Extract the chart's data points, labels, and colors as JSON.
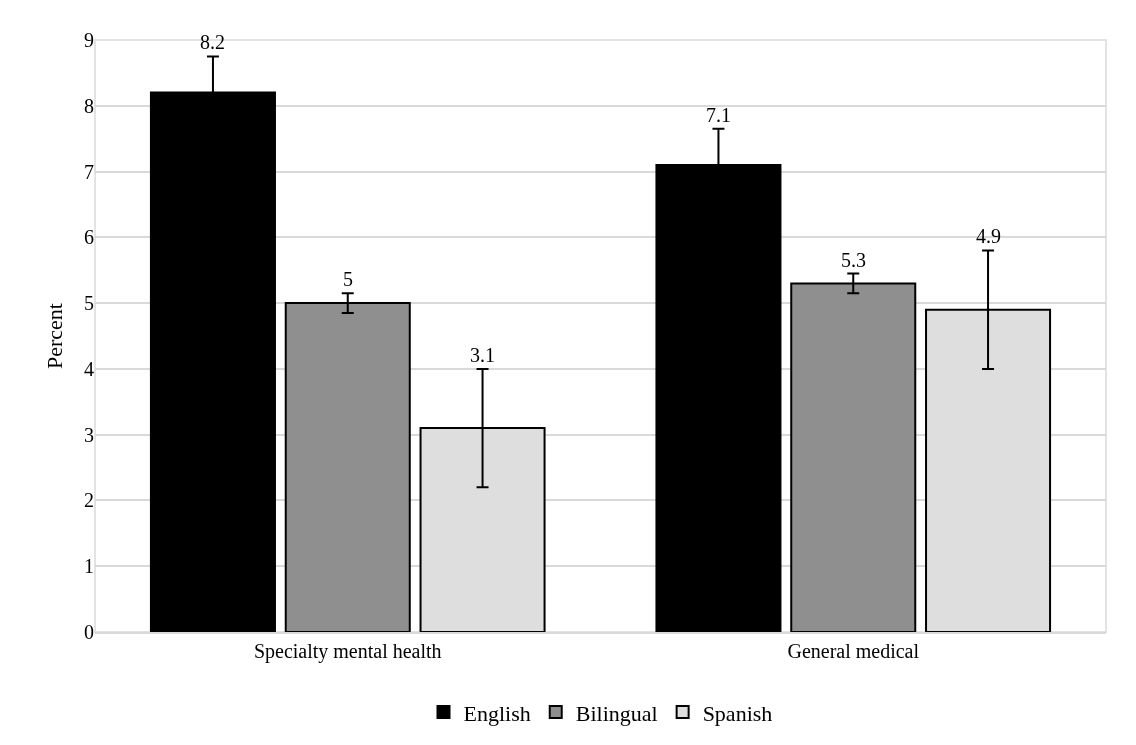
{
  "chart_data": {
    "type": "bar",
    "ylabel": "Percent",
    "categories": [
      "Specialty mental health",
      "General medical"
    ],
    "series": [
      {
        "name": "English",
        "color": "#000000",
        "values": [
          8.2,
          7.1
        ],
        "errors": [
          0.55,
          0.55
        ]
      },
      {
        "name": "Bilingual",
        "color": "#8f8f8f",
        "values": [
          5,
          5.3
        ],
        "errors": [
          0.15,
          0.15
        ]
      },
      {
        "name": "Spanish",
        "color": "#dedede",
        "values": [
          3.1,
          4.9
        ],
        "errors": [
          0.9,
          0.9
        ]
      }
    ],
    "ylim": [
      0,
      9
    ],
    "yticks": [
      0,
      1,
      2,
      3,
      4,
      5,
      6,
      7,
      8,
      9
    ],
    "grid": "y",
    "legend": "bottom",
    "data_labels": true
  }
}
